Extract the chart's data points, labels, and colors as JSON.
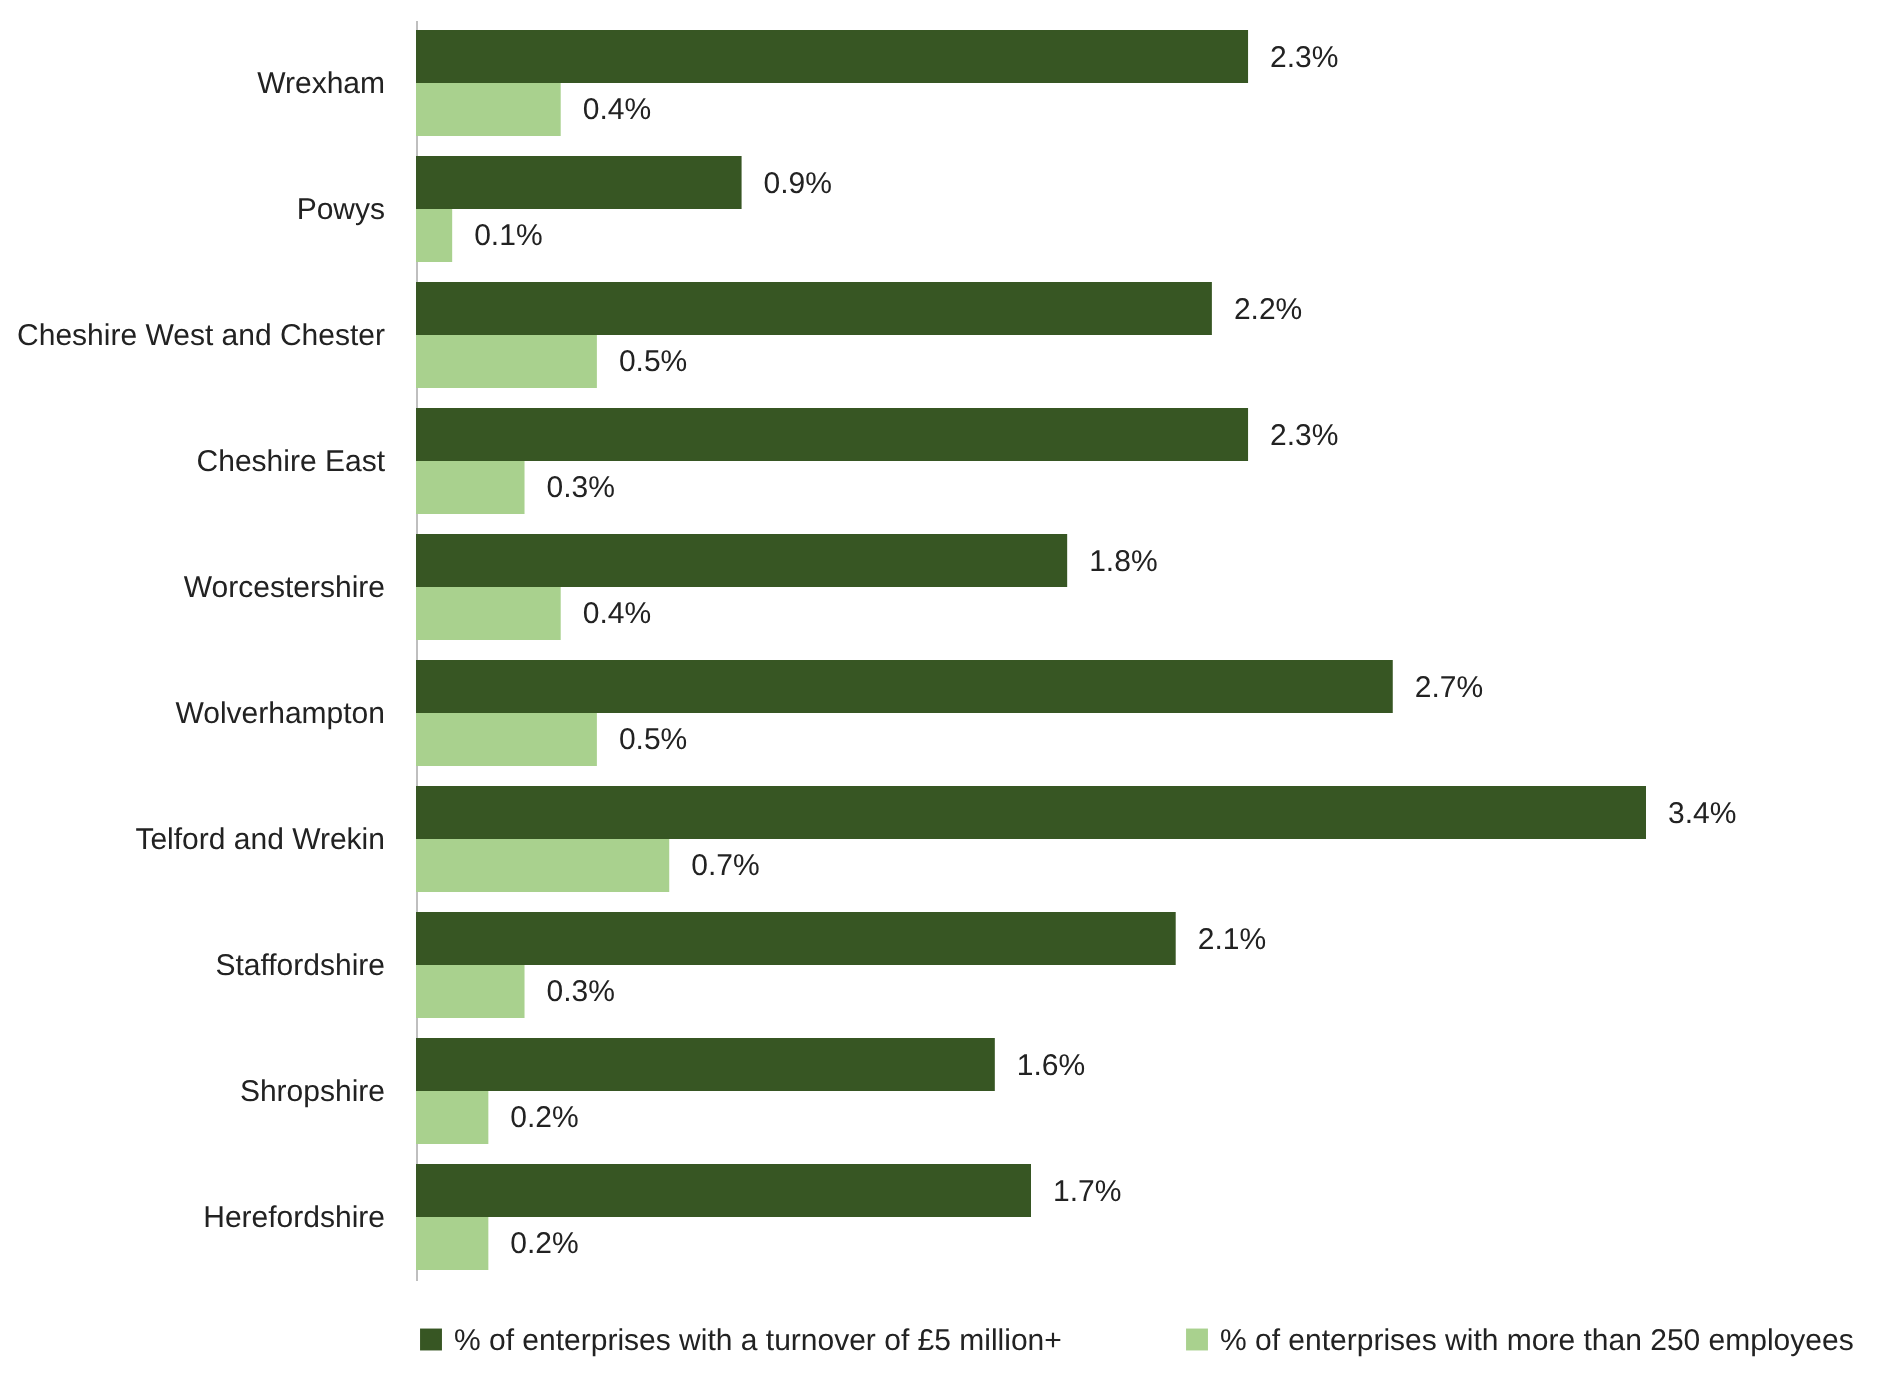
{
  "chart_data": {
    "type": "bar",
    "orientation": "horizontal",
    "categories": [
      "Wrexham",
      "Powys",
      "Cheshire West and Chester",
      "Cheshire East",
      "Worcestershire",
      "Wolverhampton",
      "Telford and Wrekin",
      "Staffordshire",
      "Shropshire",
      "Herefordshire"
    ],
    "series": [
      {
        "name": "% of enterprises with a turnover of £5 million+",
        "color": "#375623",
        "values": [
          2.3,
          0.9,
          2.2,
          2.3,
          1.8,
          2.7,
          3.4,
          2.1,
          1.6,
          1.7
        ],
        "value_labels": [
          "2.3%",
          "0.9%",
          "2.2%",
          "2.3%",
          "1.8%",
          "2.7%",
          "3.4%",
          "2.1%",
          "1.6%",
          "1.7%"
        ]
      },
      {
        "name": "% of enterprises with more than 250 employees",
        "color": "#a9d18e",
        "values": [
          0.4,
          0.1,
          0.5,
          0.3,
          0.4,
          0.5,
          0.7,
          0.3,
          0.2,
          0.2
        ],
        "value_labels": [
          "0.4%",
          "0.1%",
          "0.5%",
          "0.3%",
          "0.4%",
          "0.5%",
          "0.7%",
          "0.3%",
          "0.2%",
          "0.2%"
        ]
      }
    ],
    "legend": "bottom"
  }
}
